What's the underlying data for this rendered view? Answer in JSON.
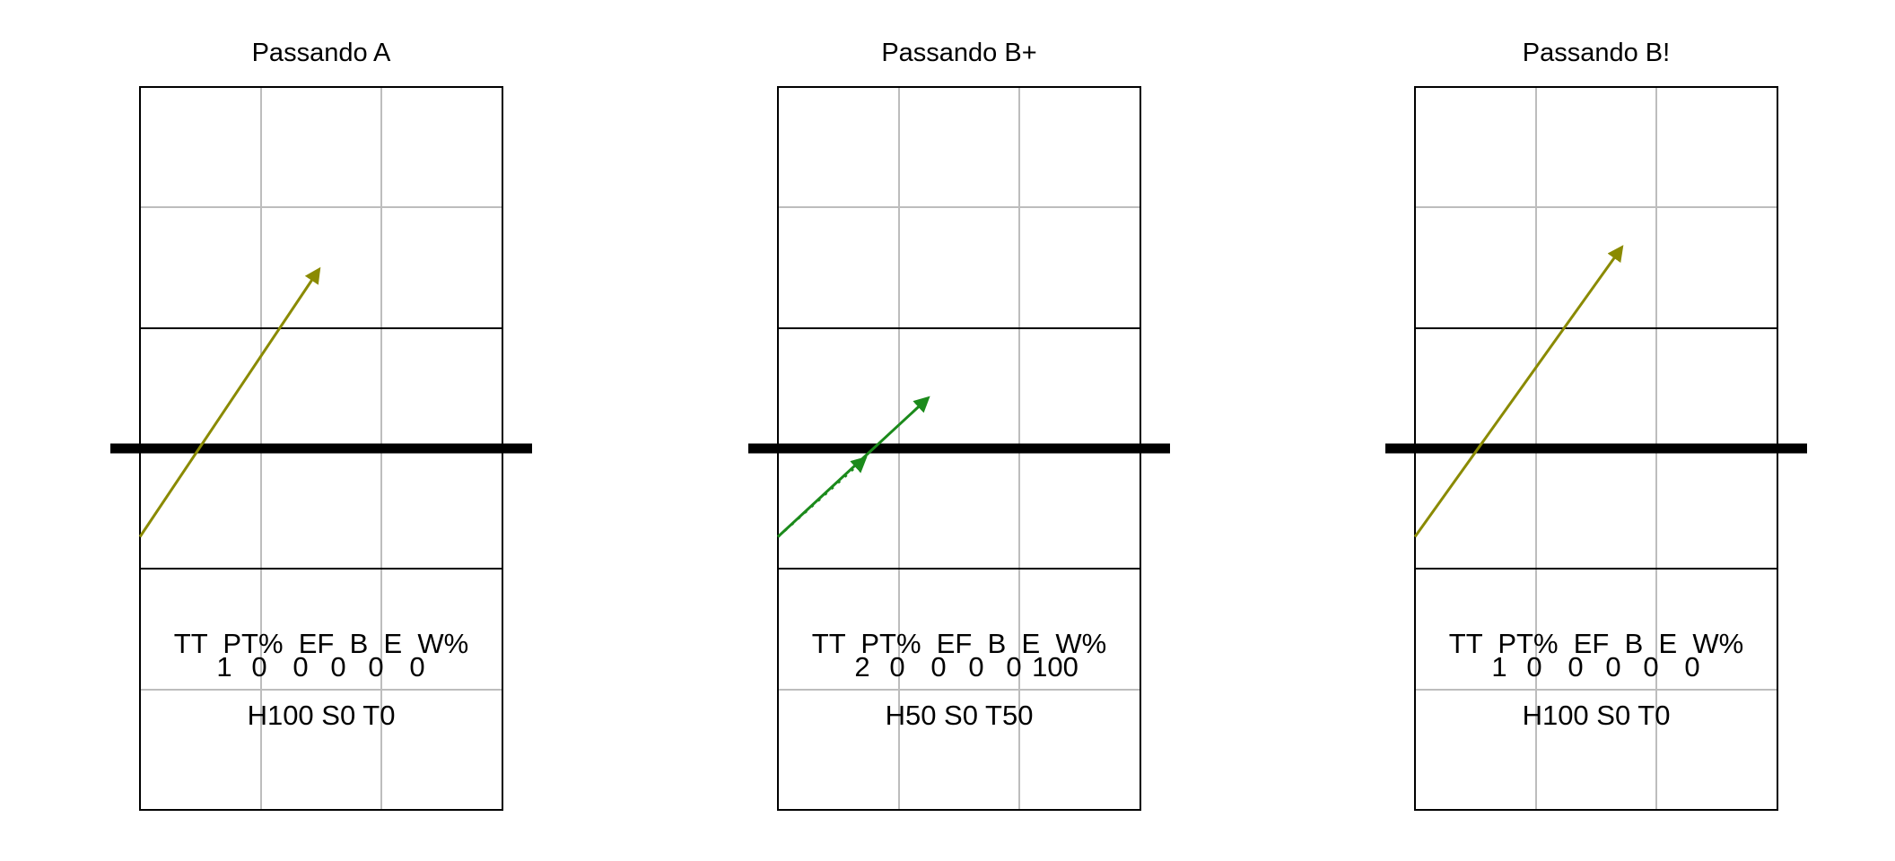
{
  "colors": {
    "olive": "#8a8a00",
    "green": "#1b8a1b",
    "grid_light": "#bdbdbd",
    "line": "#000000"
  },
  "panels": [
    {
      "title": "Passando A",
      "stats_header": "TT  PT%  EF  B  E  W%",
      "stats_values": [
        "1",
        "0",
        "0",
        "0",
        "0",
        "0"
      ],
      "distribution": "H100 S0 T0",
      "arrows": [
        {
          "color": "olive",
          "style": "solid",
          "from": [
            0.0,
            6.8
          ],
          "to": [
            1.48,
            13.45
          ]
        }
      ]
    },
    {
      "title": "Passando B+",
      "stats_header": "TT  PT%  EF  B  E  W%",
      "stats_values": [
        "2",
        "0",
        "0",
        "0",
        "0",
        "100"
      ],
      "distribution": "H50 S0 T50",
      "arrows": [
        {
          "color": "green",
          "style": "solid",
          "from": [
            0.0,
            6.8
          ],
          "to": [
            1.24,
            10.25
          ]
        },
        {
          "color": "green",
          "style": "dotted",
          "from": [
            0.0,
            6.8
          ],
          "to": [
            0.72,
            8.75
          ]
        }
      ]
    },
    {
      "title": "Passando B!",
      "stats_header": "TT  PT%  EF  B  E  W%",
      "stats_values": [
        "1",
        "0",
        "0",
        "0",
        "0",
        "0"
      ],
      "distribution": "H100 S0 T0",
      "arrows": [
        {
          "color": "olive",
          "style": "solid",
          "from": [
            0.0,
            6.8
          ],
          "to": [
            1.71,
            14.0
          ]
        }
      ]
    }
  ]
}
